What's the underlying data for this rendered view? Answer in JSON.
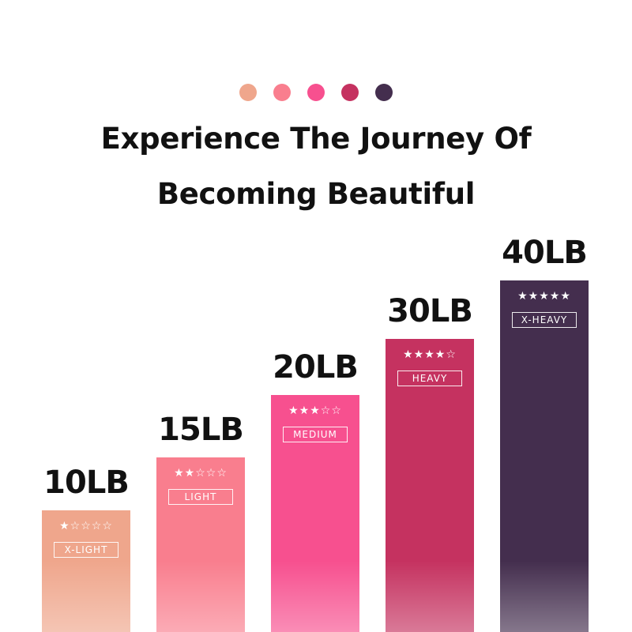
{
  "header": {
    "dot_colors": [
      "#EFA68C",
      "#F97E8E",
      "#F7508F",
      "#C53260",
      "#442E4E"
    ],
    "title_line1": "Experience The Journey Of",
    "title_line2": "Becoming Beautiful"
  },
  "chart_data": {
    "type": "bar",
    "title": "Experience The Journey Of Becoming Beautiful",
    "categories": [
      "X-LIGHT",
      "LIGHT",
      "MEDIUM",
      "HEAVY",
      "X-HEAVY"
    ],
    "values": [
      10,
      15,
      20,
      30,
      40
    ],
    "value_labels": [
      "10LB",
      "15LB",
      "20LB",
      "30LB",
      "40LB"
    ],
    "stars": [
      1,
      2,
      3,
      4,
      5
    ],
    "colors": [
      "#EFA68C",
      "#F97E8E",
      "#F7508F",
      "#C53260",
      "#442E4E"
    ],
    "grid": false,
    "xlabel": "",
    "ylabel": ""
  }
}
